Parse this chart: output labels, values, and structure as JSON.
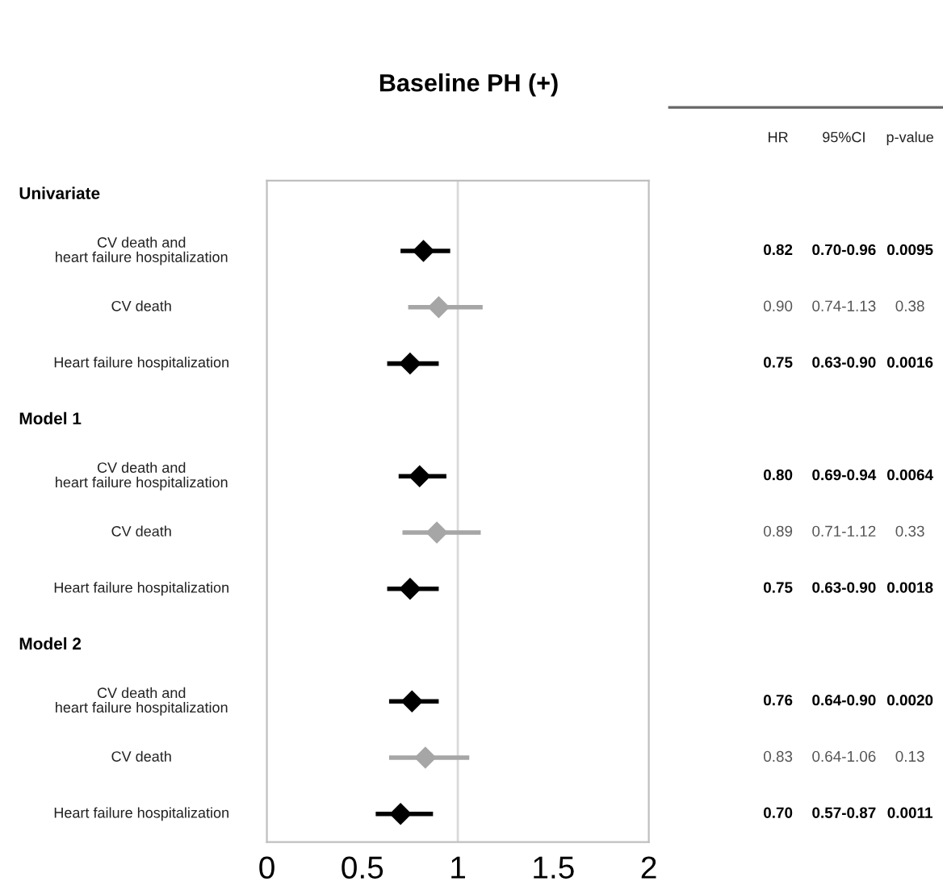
{
  "chart_data": {
    "type": "scatter",
    "orientation": "horizontal",
    "title": "Baseline PH (+)",
    "categories": [
      null,
      "CV death and\nheart failure hospitalization",
      "CV death",
      "Heart failure hospitalization",
      null,
      "CV death and\nheart failure hospitalization",
      "CV death",
      "Heart failure hospitalization",
      null,
      "CV death and\nheart failure hospitalization",
      "CV death",
      "Heart failure hospitalization"
    ],
    "values": [
      null,
      0.82,
      0.9,
      0.75,
      null,
      0.8,
      0.89,
      0.75,
      null,
      0.76,
      0.83,
      0.7
    ],
    "errors": [
      null,
      [
        0.7,
        0.96
      ],
      [
        0.74,
        1.13
      ],
      [
        0.63,
        0.9
      ],
      null,
      [
        0.69,
        0.94
      ],
      [
        0.71,
        1.12
      ],
      [
        0.63,
        0.9
      ],
      null,
      [
        0.64,
        0.9
      ],
      [
        0.64,
        1.06
      ],
      [
        0.57,
        0.87
      ]
    ],
    "colors": [
      "#000000",
      "#000000",
      "#a6a6a6",
      "#000000",
      "#000000",
      "#000000",
      "#a6a6a6",
      "#000000",
      "#000000",
      "#000000",
      "#a6a6a6",
      "#000000"
    ],
    "value_labels": [
      null,
      "0.82",
      "0.90",
      "0.75",
      null,
      "0.80",
      "0.89",
      "0.75",
      null,
      "0.76",
      "0.83",
      "0.70"
    ],
    "annotations": [
      "Univariate",
      "Model 1",
      "Model 2",
      "HR",
      "95%CI",
      "p-value",
      "0.70-0.96",
      "0.0095",
      "0.74-1.13",
      "0.38",
      "0.63-0.90",
      "0.0016",
      "0.69-0.94",
      "0.0064",
      "0.71-1.12",
      "0.33",
      "0.63-0.90",
      "0.0018",
      "0.64-0.90",
      "0.0020",
      "0.64-1.06",
      "0.13",
      "0.57-0.87",
      "0.0011"
    ],
    "xlim": [
      0,
      2
    ],
    "xticks": [
      0,
      0.5,
      1,
      1.5,
      2
    ],
    "ref_lines": [
      {
        "axis": "x",
        "value": 1,
        "color": "#d9d9d9"
      }
    ],
    "marker": "diamond",
    "grid": false,
    "legend": false
  }
}
